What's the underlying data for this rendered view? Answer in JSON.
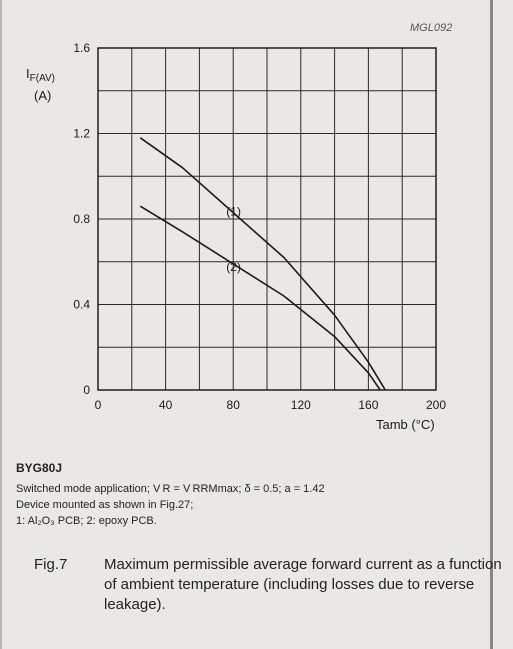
{
  "chart_data": {
    "type": "line",
    "ylabel_main": "I",
    "ylabel_sub": "F(AV)",
    "ylabel_unit": "(A)",
    "xlabel": "Tamb (°C)",
    "xlim": [
      0,
      200
    ],
    "ylim": [
      0,
      1.6
    ],
    "xticks": [
      0,
      40,
      80,
      120,
      160,
      200
    ],
    "xtick_labels": [
      "0",
      "40",
      "80",
      "120",
      "160",
      "200"
    ],
    "yticks": [
      0,
      0.4,
      0.8,
      1.2,
      1.6
    ],
    "ytick_labels": [
      "0",
      "0.4",
      "0.8",
      "1.2",
      "1.6"
    ],
    "grid": true,
    "series": [
      {
        "name": "(1)",
        "color": "#1a1a1a",
        "x": [
          25,
          50,
          80,
          110,
          140,
          160,
          170
        ],
        "y": [
          1.18,
          1.04,
          0.83,
          0.62,
          0.35,
          0.13,
          0.0
        ]
      },
      {
        "name": "(2)",
        "color": "#1a1a1a",
        "x": [
          25,
          50,
          80,
          110,
          140,
          160,
          167
        ],
        "y": [
          0.86,
          0.74,
          0.59,
          0.44,
          0.25,
          0.08,
          0.0
        ]
      }
    ],
    "series_label_anchor_x": [
      70,
      70
    ],
    "reference_code": "MGL092"
  },
  "caption": {
    "device": "BYG80J",
    "line1": "Switched mode application; V R = V RRMmax; δ = 0.5; a = 1.42",
    "line2": "Device mounted as shown in Fig.27;",
    "line3": "1: Al₂O₃ PCB; 2: epoxy PCB."
  },
  "figure": {
    "number": "Fig.7",
    "text": "Maximum permissible average forward current as a function of ambient temperature (including losses due to reverse leakage)."
  }
}
